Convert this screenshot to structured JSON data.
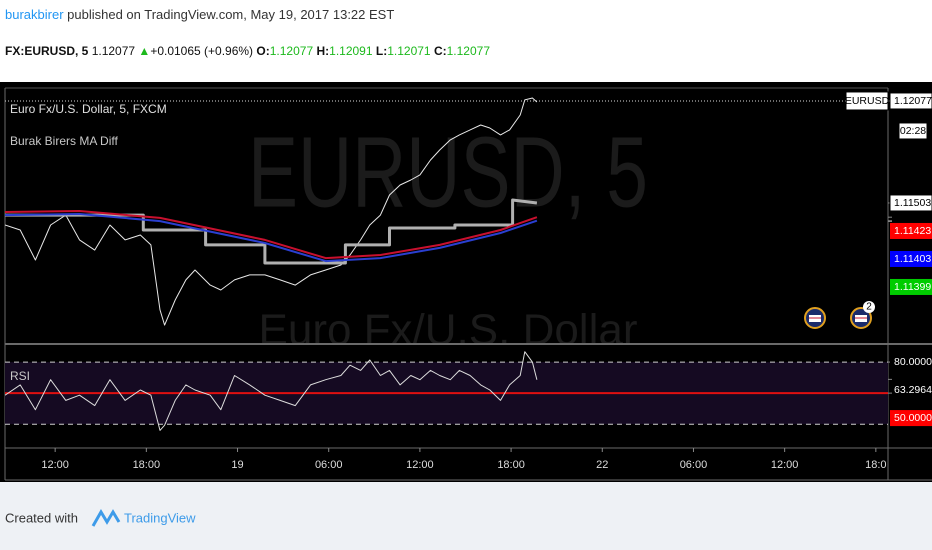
{
  "header": {
    "author": "burakbirer",
    "published": "published on TradingView.com, May 19, 2017 13:22 EST",
    "symbol": "FX:EURUSD, 5",
    "last": "1.12077",
    "arrow": "▲",
    "change": "+0.01065 (+0.96%)",
    "ohlc": [
      {
        "key": "O:",
        "value": "1.12077"
      },
      {
        "key": "H:",
        "value": "1.12091"
      },
      {
        "key": "L:",
        "value": "1.12071"
      },
      {
        "key": "C:",
        "value": "1.12077"
      }
    ]
  },
  "watermark": {
    "symbol": "EURUSD, 5",
    "description": "Euro Fx/U.S. Dollar"
  },
  "events": {
    "count": "2"
  },
  "footer": {
    "created": "Created with",
    "brand": "TradingView"
  },
  "chart_data": [
    {
      "type": "line",
      "title": "Euro Fx/U.S. Dollar, 5, FXCM",
      "indicator": "Burak Birers MA Diff",
      "symbol_label": "EURUSD",
      "countdown": "02:28",
      "xlim": [
        -3.3,
        54.8
      ],
      "ylim": [
        1.10715,
        1.1215
      ],
      "yticks": [
        {
          "value": 1.12077,
          "label": "1.12077"
        },
        {
          "value": 1.11503,
          "label": "1.11503"
        },
        {
          "value": 1.11423,
          "label": "1.11423"
        },
        {
          "value": 1.11403,
          "label": "1.11403"
        },
        {
          "value": 1.11399,
          "label": "1.11399"
        }
      ],
      "ytick_colors": [
        "#ffffff",
        "#ffffff",
        "#ff0000",
        "#0000ff",
        "#00cc00"
      ],
      "last_line": 1.12077,
      "series": [
        {
          "color": "#e8e8e8",
          "x": [
            -3.3,
            -2.3,
            -1.3,
            -0.3,
            0.7,
            1.6,
            2.6,
            3.6,
            4.6,
            5.6,
            6.3,
            6.9,
            7.2,
            7.9,
            8.6,
            9.2,
            10.2,
            10.9,
            11.8,
            12.8,
            13.8,
            14.8,
            15.8,
            16.8,
            17.8,
            18.8,
            19.4,
            20.1,
            20.7,
            21.4,
            22.0,
            22.7,
            23.4,
            24.0,
            24.7,
            25.3,
            26.0,
            26.6,
            27.3,
            28.0,
            28.6,
            29.3,
            29.9,
            30.6,
            30.9,
            31.4,
            31.7
          ],
          "values": [
            1.11379,
            1.11351,
            1.11182,
            1.11379,
            1.11435,
            1.11295,
            1.11238,
            1.11379,
            1.11295,
            1.11323,
            1.11267,
            1.10901,
            1.10816,
            1.10957,
            1.1107,
            1.11126,
            1.11041,
            1.11013,
            1.1107,
            1.11098,
            1.11098,
            1.1107,
            1.11041,
            1.11098,
            1.11126,
            1.11154,
            1.1121,
            1.11295,
            1.11379,
            1.11435,
            1.11548,
            1.11604,
            1.11632,
            1.11661,
            1.11745,
            1.11801,
            1.11858,
            1.11886,
            1.11914,
            1.11942,
            1.11925,
            1.11886,
            1.11914,
            1.11998,
            1.12083,
            1.12094,
            1.12071
          ],
          "width": 1
        },
        {
          "color": "#b0b0b0",
          "x": [
            -3.3,
            5.8,
            5.8,
            9.9,
            9.9,
            13.8,
            13.8,
            19.1,
            19.1,
            22.0,
            22.0,
            26.3,
            26.3,
            30.1,
            30.1,
            31.7
          ],
          "values": [
            1.11435,
            1.11435,
            1.11351,
            1.11351,
            1.11267,
            1.11267,
            1.11165,
            1.11165,
            1.11267,
            1.11267,
            1.11362,
            1.11362,
            1.11379,
            1.11379,
            1.1152,
            1.11503
          ],
          "width": 3
        },
        {
          "color": "#2a3fd0",
          "x": [
            -3.3,
            1.6,
            6.9,
            13.8,
            17.8,
            21.4,
            25.3,
            29.3,
            31.7
          ],
          "values": [
            1.11435,
            1.11441,
            1.11401,
            1.11278,
            1.11176,
            1.11193,
            1.1125,
            1.11334,
            1.11403
          ],
          "width": 2
        },
        {
          "color": "#c8102e",
          "x": [
            -3.3,
            1.6,
            6.9,
            13.8,
            17.8,
            21.4,
            25.3,
            29.3,
            31.7
          ],
          "values": [
            1.11452,
            1.11458,
            1.11419,
            1.11295,
            1.11193,
            1.1121,
            1.11267,
            1.11351,
            1.11423
          ],
          "width": 2
        }
      ]
    },
    {
      "type": "line",
      "title": "RSI",
      "xlim": [
        -3.3,
        54.8
      ],
      "ylim": [
        -3,
        96.5
      ],
      "yticks": [
        {
          "value": 80,
          "label": "80.0000"
        },
        {
          "value": 63.2964,
          "label": "63.2964"
        },
        {
          "value": 50,
          "label": "50.0000"
        }
      ],
      "ytick_colors": [
        "#000000",
        "#000000",
        "#ff0000"
      ],
      "bands": [
        80,
        20
      ],
      "midline": 50,
      "xticks": [
        {
          "value": 0,
          "label": "12:00"
        },
        {
          "value": 6,
          "label": "18:00"
        },
        {
          "value": 12,
          "label": "19"
        },
        {
          "value": 18,
          "label": "06:00"
        },
        {
          "value": 24,
          "label": "12:00"
        },
        {
          "value": 30,
          "label": "18:00"
        },
        {
          "value": 36,
          "label": "22"
        },
        {
          "value": 42,
          "label": "06:00"
        },
        {
          "value": 48,
          "label": "12:00"
        },
        {
          "value": 54,
          "label": "18:0"
        }
      ],
      "series": [
        {
          "color": "#dcdcdc",
          "x": [
            -3.3,
            -2.3,
            -1.3,
            -0.3,
            0.7,
            1.6,
            2.6,
            3.6,
            4.6,
            5.6,
            6.3,
            6.9,
            7.2,
            7.9,
            8.6,
            9.2,
            10.2,
            10.9,
            11.8,
            12.8,
            13.8,
            14.8,
            15.8,
            16.8,
            17.8,
            18.8,
            19.4,
            20.1,
            20.7,
            21.4,
            22.0,
            22.7,
            23.4,
            24.0,
            24.7,
            25.3,
            26.0,
            26.6,
            27.3,
            28.0,
            28.6,
            29.3,
            29.9,
            30.6,
            30.9,
            31.4,
            31.7
          ],
          "values": [
            48,
            58,
            34,
            63,
            43,
            48,
            38,
            63,
            43,
            53,
            48,
            14,
            19,
            43,
            58,
            53,
            48,
            34,
            67,
            58,
            48,
            43,
            38,
            58,
            63,
            67,
            77,
            72,
            82,
            67,
            72,
            58,
            67,
            63,
            72,
            67,
            63,
            72,
            67,
            58,
            53,
            43,
            58,
            67,
            90,
            80,
            63
          ],
          "width": 1
        }
      ]
    }
  ]
}
